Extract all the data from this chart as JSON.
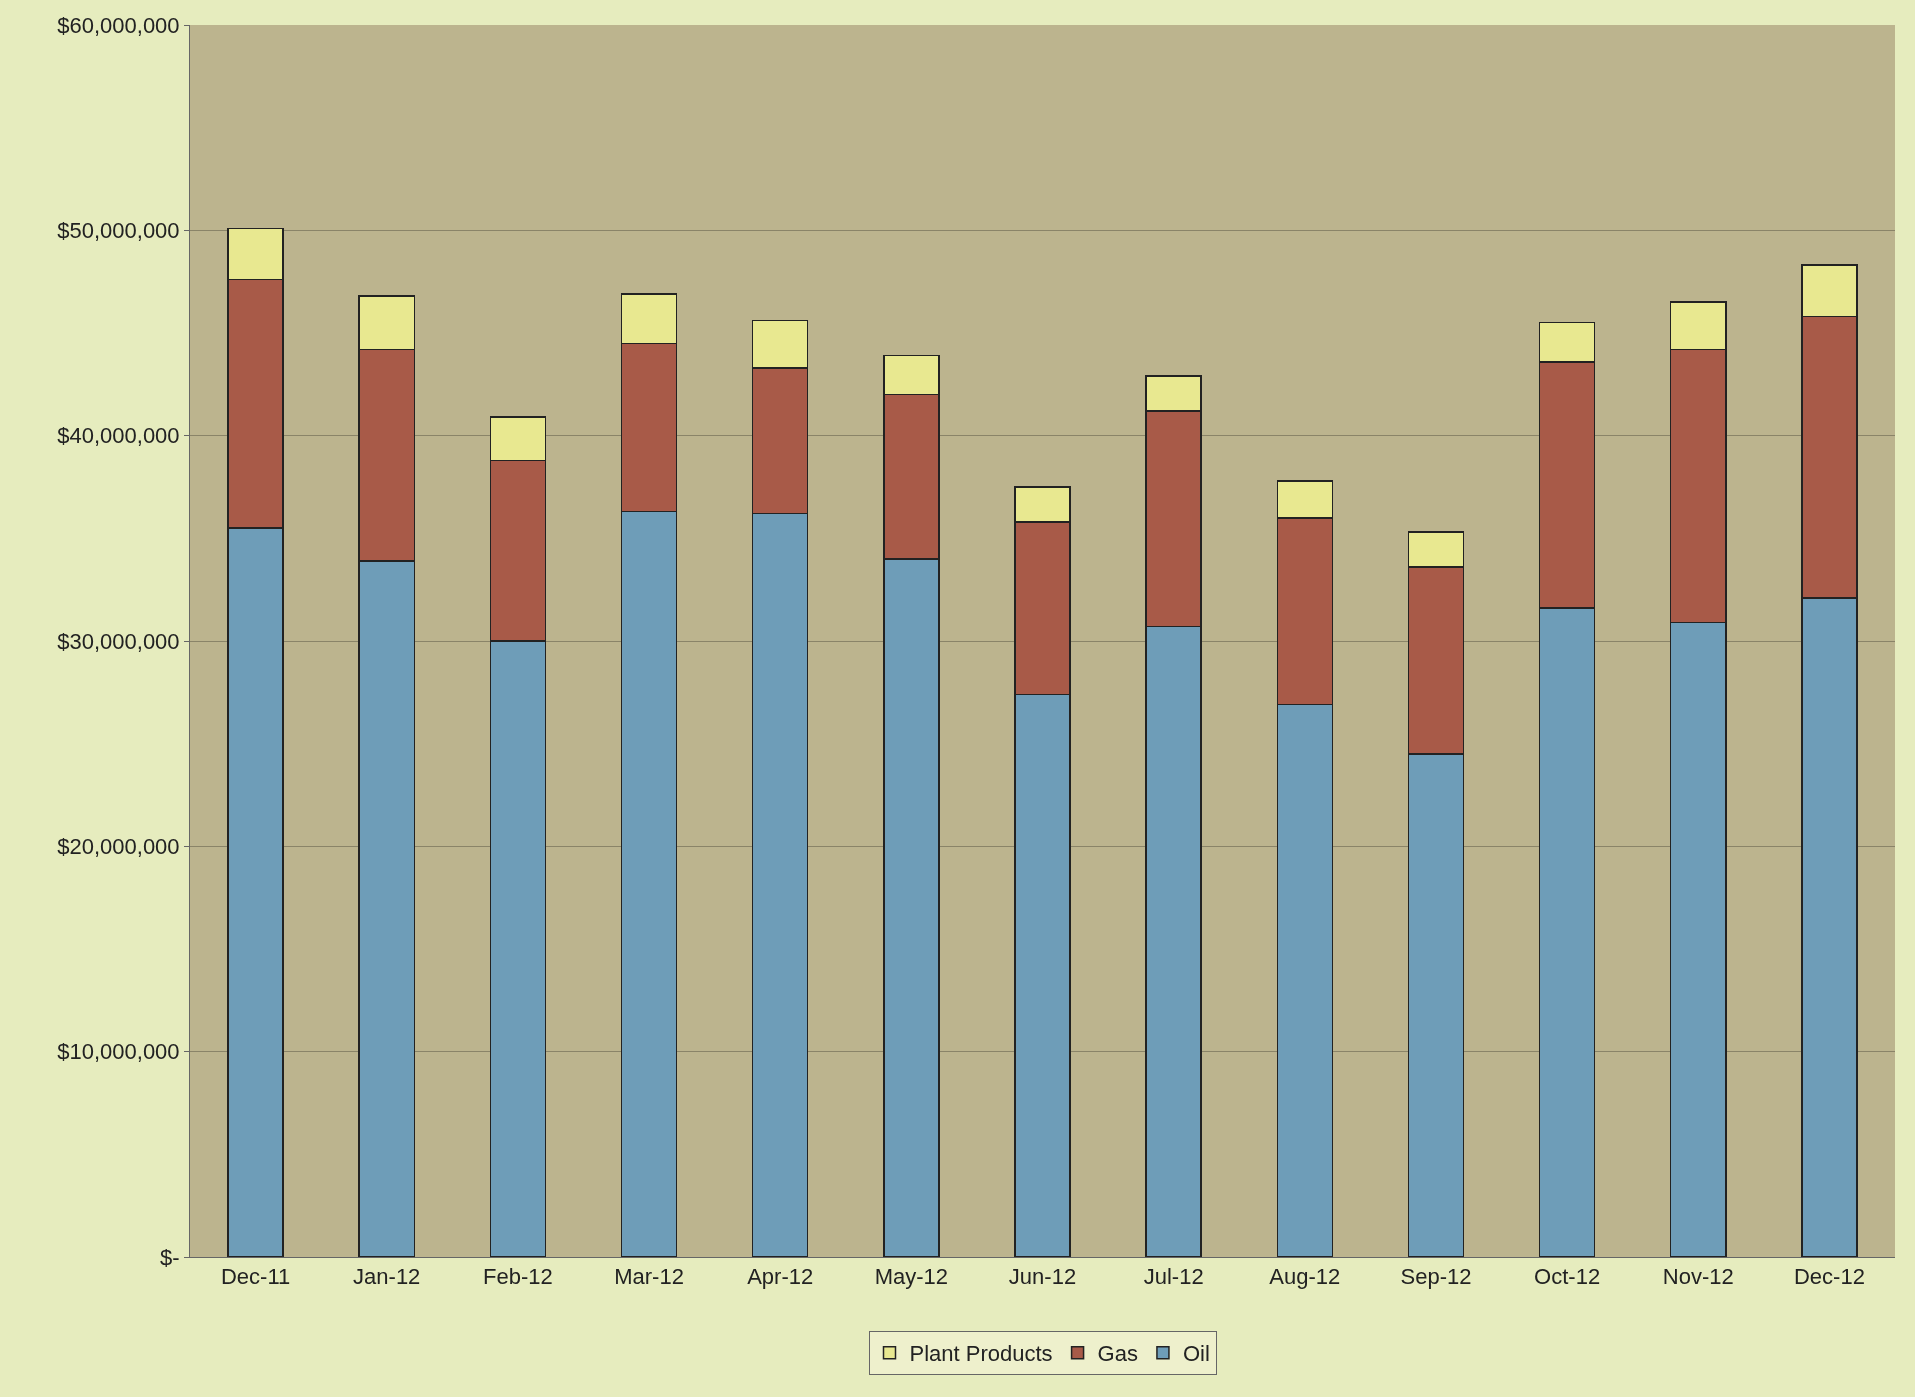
{
  "chart_data": {
    "type": "bar",
    "stacked": true,
    "categories": [
      "Dec-11",
      "Jan-12",
      "Feb-12",
      "Mar-12",
      "Apr-12",
      "May-12",
      "Jun-12",
      "Jul-12",
      "Aug-12",
      "Sep-12",
      "Oct-12",
      "Nov-12",
      "Dec-12"
    ],
    "series": [
      {
        "name": "Oil",
        "color": "#6e9db8",
        "values": [
          35500000,
          33900000,
          30000000,
          36300000,
          36200000,
          34000000,
          27400000,
          30700000,
          26900000,
          24500000,
          31600000,
          30900000,
          32100000
        ]
      },
      {
        "name": "Gas",
        "color": "#a85a48",
        "values": [
          12100000,
          10300000,
          8800000,
          8200000,
          7100000,
          8000000,
          8400000,
          10500000,
          9100000,
          9100000,
          12000000,
          13300000,
          13700000
        ]
      },
      {
        "name": "Plant Products",
        "color": "#e8e890",
        "values": [
          2500000,
          2600000,
          2100000,
          2400000,
          2300000,
          1900000,
          1700000,
          1700000,
          1800000,
          1700000,
          1900000,
          2300000,
          2500000
        ]
      }
    ],
    "ylim": [
      0,
      60000000
    ],
    "yticks": [
      {
        "value": 0,
        "label": "$-"
      },
      {
        "value": 10000000,
        "label": "$10,000,000"
      },
      {
        "value": 20000000,
        "label": "$20,000,000"
      },
      {
        "value": 30000000,
        "label": "$30,000,000"
      },
      {
        "value": 40000000,
        "label": "$40,000,000"
      },
      {
        "value": 50000000,
        "label": "$50,000,000"
      },
      {
        "value": 60000000,
        "label": "$60,000,000"
      }
    ],
    "grid": "y",
    "legend": "bottom"
  }
}
